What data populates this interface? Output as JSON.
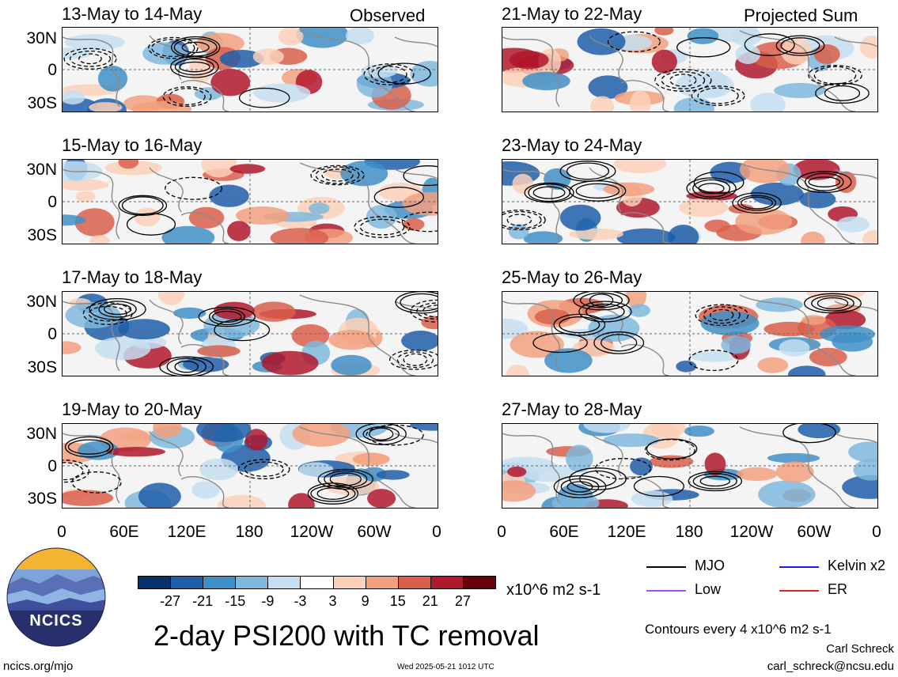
{
  "panels": {
    "left": [
      {
        "title": "13-May to 14-May",
        "label": "Observed"
      },
      {
        "title": "15-May to 16-May",
        "label": ""
      },
      {
        "title": "17-May to 18-May",
        "label": ""
      },
      {
        "title": "19-May to 20-May",
        "label": ""
      }
    ],
    "right": [
      {
        "title": "21-May to 22-May",
        "label": "Projected Sum"
      },
      {
        "title": "23-May to 24-May",
        "label": ""
      },
      {
        "title": "25-May to 26-May",
        "label": ""
      },
      {
        "title": "27-May to 28-May",
        "label": ""
      }
    ]
  },
  "lat_labels": [
    "30N",
    "0",
    "30S"
  ],
  "lon_labels": [
    "0",
    "60E",
    "120E",
    "180",
    "120W",
    "60W",
    "0"
  ],
  "colorbar": {
    "labels": [
      "-27",
      "-21",
      "-15",
      "-9",
      "-3",
      "3",
      "9",
      "15",
      "21",
      "27"
    ],
    "colors": [
      "#08306b",
      "#1f5ea8",
      "#3f8fc7",
      "#7fb8dd",
      "#c6def0",
      "#ffffff",
      "#fbd0b9",
      "#f2a07e",
      "#d95f4b",
      "#b0182c",
      "#67000d"
    ],
    "units": "x10^6 m2 s-1"
  },
  "legend": {
    "items": [
      {
        "label": "MJO",
        "color": "#000000"
      },
      {
        "label": "Kelvin x2",
        "color": "#1a1aff"
      },
      {
        "label": "Low",
        "color": "#a64dff"
      },
      {
        "label": "ER",
        "color": "#e0261d"
      }
    ],
    "contour_note": "Contours every 4 x10^6 m2 s-1"
  },
  "main_title": "2-day PSI200 with TC removal",
  "logo_text": "NCICS",
  "footer": {
    "left": "ncics.org/mjo",
    "center": "Wed 2025-05-21 1012 UTC",
    "author": "Carl Schreck",
    "email": "carl_schreck@ncsu.edu"
  }
}
